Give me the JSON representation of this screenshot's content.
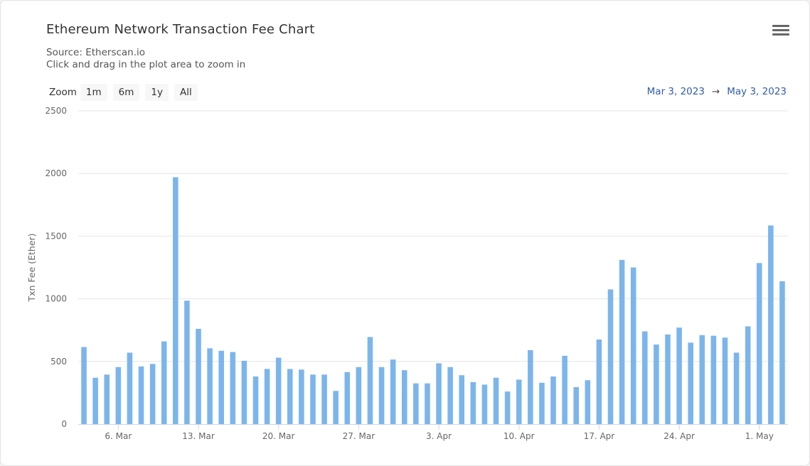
{
  "header": {
    "title": "Ethereum Network Transaction Fee Chart",
    "source": "Source: Etherscan.io",
    "hint": "Click and drag in the plot area to zoom in",
    "menu_icon": "hamburger-menu-icon"
  },
  "zoom": {
    "label": "Zoom",
    "buttons": [
      "1m",
      "6m",
      "1y",
      "All"
    ]
  },
  "range": {
    "from": "Mar 3, 2023",
    "arrow": "→",
    "to": "May 3, 2023"
  },
  "chart_data": {
    "type": "bar",
    "title": "Ethereum Network Transaction Fee Chart",
    "ylabel": "Txn Fee (Ether)",
    "xlabel": "",
    "ylim": [
      0,
      2500
    ],
    "yticks": [
      0,
      500,
      1000,
      1500,
      2000,
      2500
    ],
    "grid": true,
    "color": "#7cb5ec",
    "x_ticks": [
      {
        "label": "6. Mar",
        "date": "2023-03-06"
      },
      {
        "label": "13. Mar",
        "date": "2023-03-13"
      },
      {
        "label": "20. Mar",
        "date": "2023-03-20"
      },
      {
        "label": "27. Mar",
        "date": "2023-03-27"
      },
      {
        "label": "3. Apr",
        "date": "2023-04-03"
      },
      {
        "label": "10. Apr",
        "date": "2023-04-10"
      },
      {
        "label": "17. Apr",
        "date": "2023-04-17"
      },
      {
        "label": "24. Apr",
        "date": "2023-04-24"
      },
      {
        "label": "1. May",
        "date": "2023-05-01"
      }
    ],
    "dates": [
      "2023-03-03",
      "2023-03-04",
      "2023-03-05",
      "2023-03-06",
      "2023-03-07",
      "2023-03-08",
      "2023-03-09",
      "2023-03-10",
      "2023-03-11",
      "2023-03-12",
      "2023-03-13",
      "2023-03-14",
      "2023-03-15",
      "2023-03-16",
      "2023-03-17",
      "2023-03-18",
      "2023-03-19",
      "2023-03-20",
      "2023-03-21",
      "2023-03-22",
      "2023-03-23",
      "2023-03-24",
      "2023-03-25",
      "2023-03-26",
      "2023-03-27",
      "2023-03-28",
      "2023-03-29",
      "2023-03-30",
      "2023-03-31",
      "2023-04-01",
      "2023-04-02",
      "2023-04-03",
      "2023-04-04",
      "2023-04-05",
      "2023-04-06",
      "2023-04-07",
      "2023-04-08",
      "2023-04-09",
      "2023-04-10",
      "2023-04-11",
      "2023-04-12",
      "2023-04-13",
      "2023-04-14",
      "2023-04-15",
      "2023-04-16",
      "2023-04-17",
      "2023-04-18",
      "2023-04-19",
      "2023-04-20",
      "2023-04-21",
      "2023-04-22",
      "2023-04-23",
      "2023-04-24",
      "2023-04-25",
      "2023-04-26",
      "2023-04-27",
      "2023-04-28",
      "2023-04-29",
      "2023-04-30",
      "2023-05-01",
      "2023-05-02",
      "2023-05-03"
    ],
    "values": [
      615,
      370,
      395,
      455,
      570,
      460,
      480,
      660,
      1970,
      985,
      760,
      605,
      585,
      575,
      505,
      380,
      440,
      530,
      440,
      435,
      395,
      395,
      265,
      415,
      455,
      695,
      455,
      515,
      430,
      325,
      325,
      485,
      455,
      390,
      335,
      315,
      370,
      260,
      355,
      590,
      330,
      380,
      545,
      295,
      350,
      675,
      1075,
      1310,
      1250,
      740,
      635,
      715,
      770,
      650,
      710,
      705,
      690,
      570,
      780,
      1285,
      1585,
      1140
    ]
  }
}
